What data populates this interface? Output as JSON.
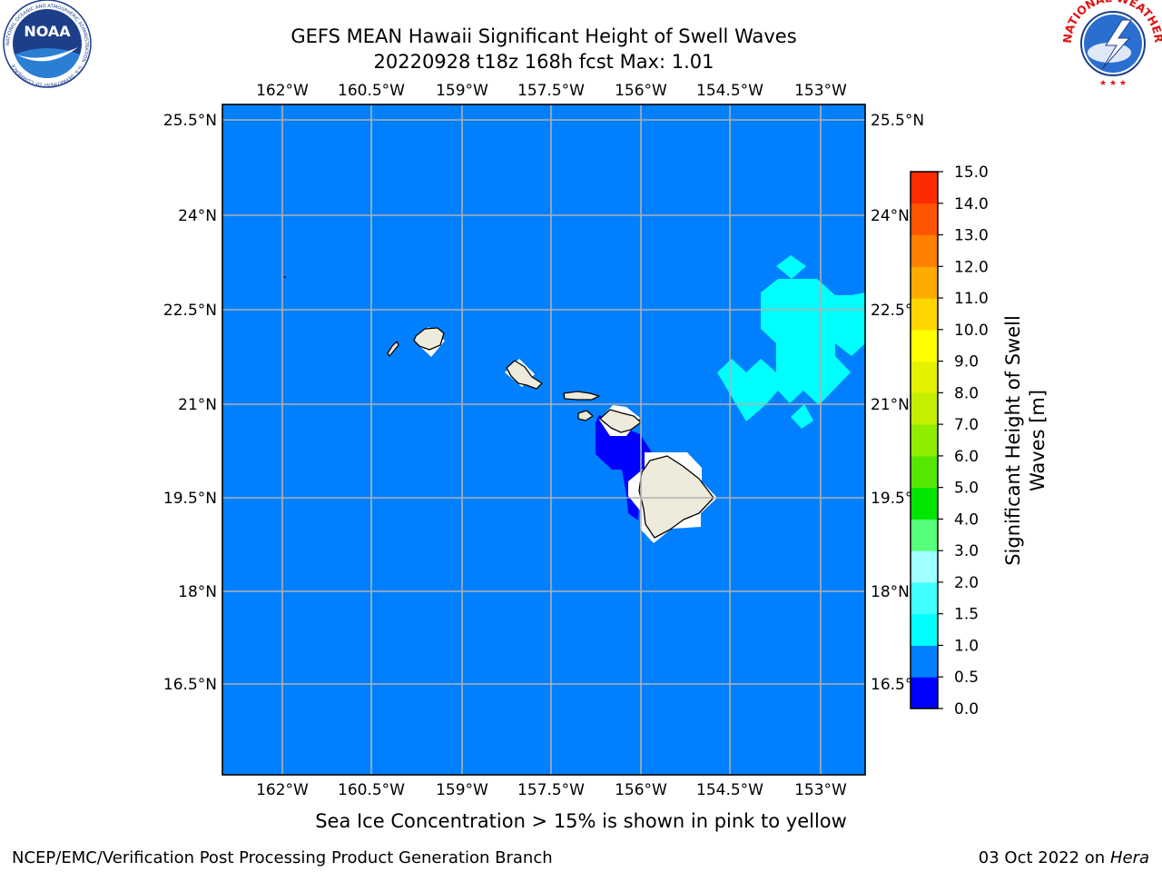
{
  "title": {
    "line1": "GEFS MEAN Hawaii Significant Height of Swell Waves",
    "line2": "20220928 t18z 168h fcst   Max: 1.01"
  },
  "map": {
    "lon_ticks": [
      "162°W",
      "160.5°W",
      "159°W",
      "157.5°W",
      "156°W",
      "154.5°W",
      "153°W"
    ],
    "lat_ticks": [
      "25.5°N",
      "24°N",
      "22.5°N",
      "21°N",
      "19.5°N",
      "18°N",
      "16.5°N"
    ],
    "ocean_color": "#0080ff",
    "land_color": "#efebdc",
    "grid_color": "#b0b0b0"
  },
  "colorbar": {
    "label_line1": "Significant Height of Swell",
    "label_line2": "Waves [m]",
    "levels": [
      "0.0",
      "0.5",
      "1.0",
      "1.5",
      "2.0",
      "3.0",
      "4.0",
      "5.0",
      "6.0",
      "7.0",
      "8.0",
      "9.0",
      "10.0",
      "11.0",
      "12.0",
      "13.0",
      "14.0",
      "15.0"
    ],
    "colors": [
      "#0000ff",
      "#0080ff",
      "#00ffff",
      "#40ffff",
      "#a0ffff",
      "#55ff7a",
      "#00e600",
      "#55e800",
      "#8fee00",
      "#c5ef00",
      "#e4f100",
      "#ffff00",
      "#ffd500",
      "#ffaa00",
      "#ff8000",
      "#ff5500",
      "#ff2b00"
    ]
  },
  "note": "Sea Ice Concentration > 15% is shown in pink to yellow",
  "footer": {
    "left": "NCEP/EMC/Verification Post Processing Product Generation Branch",
    "date": "03 Oct 2022 on ",
    "machine": "Hera"
  },
  "logos": {
    "noaa": "NOAA",
    "noaa_ring": "NATIONAL OCEANIC AND ATMOSPHERIC ADMINISTRATION · U.S. DEPARTMENT OF COMMERCE",
    "nws_ring": "NATIONAL WEATHER SERVICE"
  }
}
